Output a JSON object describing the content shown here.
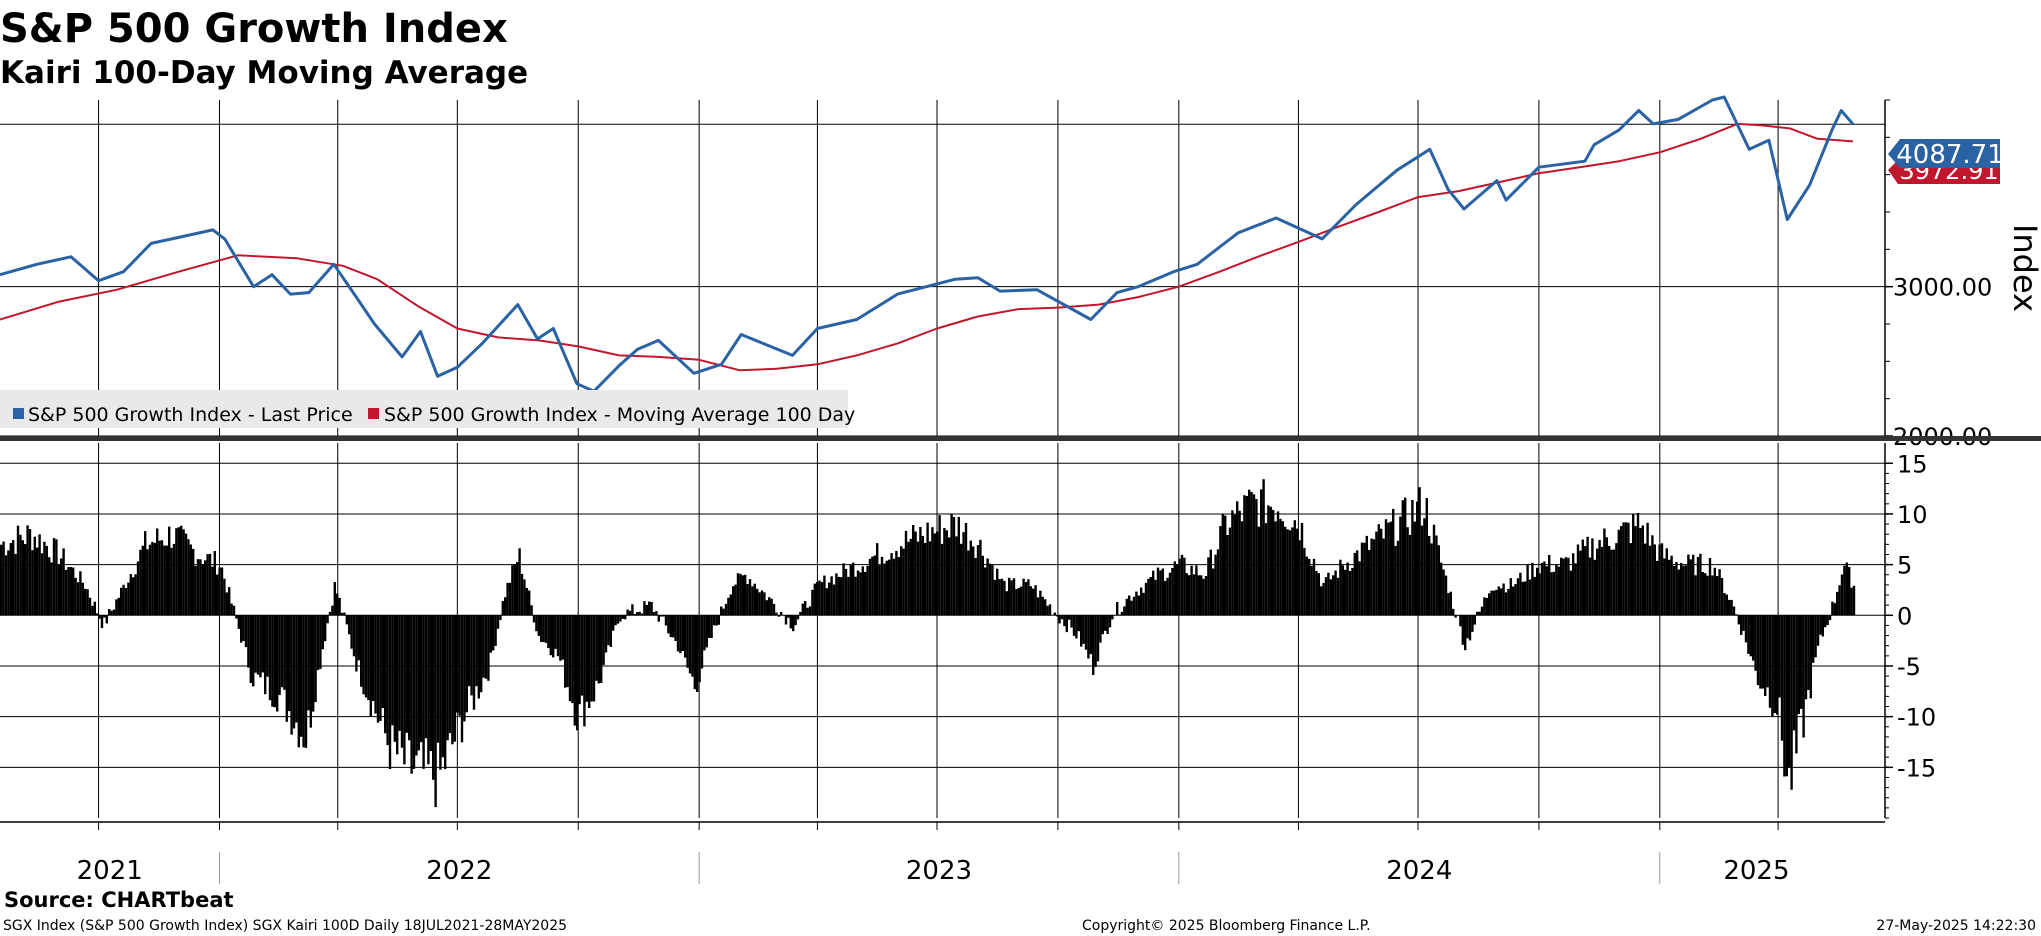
{
  "chart_data": [
    {
      "type": "line",
      "title": "S&P 500 Growth Index",
      "subtitle": "Kairi 100-Day Moving Average",
      "ylabel": "Index",
      "ylim": [
        2000,
        4250
      ],
      "yticks": [
        2000,
        3000
      ],
      "ytick_labels": [
        "2000.00",
        "3000.00"
      ],
      "x_range": [
        "2021-07-18",
        "2025-05-28"
      ],
      "x_tick_labels": [
        "2021",
        "2022",
        "2023",
        "2024",
        "2025"
      ],
      "grid": true,
      "legend_position": "bottom-left",
      "series": [
        {
          "name": "S&P 500 Growth Index - Last Price",
          "color": "#2a62a4",
          "last_value_label": "4087.71",
          "points": [
            [
              "2021-07-18",
              3080
            ],
            [
              "2021-08-15",
              3150
            ],
            [
              "2021-09-10",
              3200
            ],
            [
              "2021-10-01",
              3040
            ],
            [
              "2021-10-20",
              3100
            ],
            [
              "2021-11-10",
              3290
            ],
            [
              "2021-12-01",
              3330
            ],
            [
              "2021-12-27",
              3380
            ],
            [
              "2022-01-05",
              3320
            ],
            [
              "2022-01-27",
              3000
            ],
            [
              "2022-02-10",
              3080
            ],
            [
              "2022-02-24",
              2950
            ],
            [
              "2022-03-10",
              2960
            ],
            [
              "2022-03-29",
              3150
            ],
            [
              "2022-04-12",
              2970
            ],
            [
              "2022-04-29",
              2750
            ],
            [
              "2022-05-20",
              2530
            ],
            [
              "2022-06-03",
              2700
            ],
            [
              "2022-06-16",
              2400
            ],
            [
              "2022-07-01",
              2460
            ],
            [
              "2022-07-20",
              2620
            ],
            [
              "2022-08-16",
              2880
            ],
            [
              "2022-08-31",
              2650
            ],
            [
              "2022-09-12",
              2720
            ],
            [
              "2022-09-30",
              2350
            ],
            [
              "2022-10-13",
              2300
            ],
            [
              "2022-11-01",
              2470
            ],
            [
              "2022-11-15",
              2580
            ],
            [
              "2022-12-01",
              2640
            ],
            [
              "2022-12-28",
              2420
            ],
            [
              "2023-01-18",
              2480
            ],
            [
              "2023-02-02",
              2680
            ],
            [
              "2023-03-13",
              2540
            ],
            [
              "2023-04-01",
              2720
            ],
            [
              "2023-05-01",
              2780
            ],
            [
              "2023-06-01",
              2950
            ],
            [
              "2023-07-15",
              3050
            ],
            [
              "2023-08-01",
              3060
            ],
            [
              "2023-08-18",
              2970
            ],
            [
              "2023-09-15",
              2980
            ],
            [
              "2023-10-26",
              2780
            ],
            [
              "2023-11-15",
              2960
            ],
            [
              "2023-12-01",
              3000
            ],
            [
              "2023-12-28",
              3100
            ],
            [
              "2024-01-15",
              3150
            ],
            [
              "2024-02-15",
              3360
            ],
            [
              "2024-03-15",
              3460
            ],
            [
              "2024-04-19",
              3320
            ],
            [
              "2024-05-15",
              3550
            ],
            [
              "2024-06-15",
              3780
            ],
            [
              "2024-07-10",
              3920
            ],
            [
              "2024-07-24",
              3650
            ],
            [
              "2024-08-05",
              3520
            ],
            [
              "2024-08-30",
              3710
            ],
            [
              "2024-09-06",
              3580
            ],
            [
              "2024-10-01",
              3800
            ],
            [
              "2024-11-05",
              3840
            ],
            [
              "2024-11-12",
              3950
            ],
            [
              "2024-12-01",
              4050
            ],
            [
              "2024-12-16",
              4180
            ],
            [
              "2024-12-27",
              4090
            ],
            [
              "2025-01-15",
              4120
            ],
            [
              "2025-02-10",
              4250
            ],
            [
              "2025-02-19",
              4270
            ],
            [
              "2025-03-10",
              3920
            ],
            [
              "2025-03-25",
              3980
            ],
            [
              "2025-04-08",
              3450
            ],
            [
              "2025-04-25",
              3680
            ],
            [
              "2025-05-12",
              4050
            ],
            [
              "2025-05-19",
              4180
            ],
            [
              "2025-05-28",
              4087.71
            ]
          ]
        },
        {
          "name": "S&P 500 Growth Index - Moving Average 100 Day",
          "color": "#c0172c",
          "last_value_label": "3972.91",
          "points": [
            [
              "2021-07-18",
              2780
            ],
            [
              "2021-09-01",
              2900
            ],
            [
              "2021-10-15",
              2980
            ],
            [
              "2021-12-01",
              3100
            ],
            [
              "2022-01-15",
              3210
            ],
            [
              "2022-03-01",
              3190
            ],
            [
              "2022-04-05",
              3140
            ],
            [
              "2022-05-01",
              3050
            ],
            [
              "2022-06-01",
              2870
            ],
            [
              "2022-07-01",
              2720
            ],
            [
              "2022-08-01",
              2660
            ],
            [
              "2022-09-01",
              2640
            ],
            [
              "2022-10-01",
              2600
            ],
            [
              "2022-11-01",
              2540
            ],
            [
              "2022-12-01",
              2530
            ],
            [
              "2023-01-01",
              2510
            ],
            [
              "2023-02-01",
              2440
            ],
            [
              "2023-03-01",
              2450
            ],
            [
              "2023-04-01",
              2480
            ],
            [
              "2023-05-01",
              2540
            ],
            [
              "2023-06-01",
              2620
            ],
            [
              "2023-07-01",
              2720
            ],
            [
              "2023-08-01",
              2800
            ],
            [
              "2023-09-01",
              2850
            ],
            [
              "2023-10-01",
              2860
            ],
            [
              "2023-11-01",
              2880
            ],
            [
              "2023-12-01",
              2930
            ],
            [
              "2024-01-01",
              3000
            ],
            [
              "2024-02-01",
              3100
            ],
            [
              "2024-03-01",
              3200
            ],
            [
              "2024-04-01",
              3300
            ],
            [
              "2024-05-01",
              3400
            ],
            [
              "2024-06-01",
              3500
            ],
            [
              "2024-07-01",
              3600
            ],
            [
              "2024-08-01",
              3640
            ],
            [
              "2024-09-01",
              3700
            ],
            [
              "2024-10-01",
              3760
            ],
            [
              "2024-11-01",
              3800
            ],
            [
              "2024-12-01",
              3840
            ],
            [
              "2025-01-01",
              3900
            ],
            [
              "2025-02-01",
              3990
            ],
            [
              "2025-03-01",
              4090
            ],
            [
              "2025-03-20",
              4080
            ],
            [
              "2025-04-10",
              4060
            ],
            [
              "2025-05-01",
              3990
            ],
            [
              "2025-05-28",
              3972.91
            ]
          ]
        }
      ]
    },
    {
      "type": "bar",
      "title": "",
      "ylim": [
        -20,
        17
      ],
      "yticks": [
        15,
        10,
        5,
        0,
        -5,
        -10,
        -15
      ],
      "grid": true,
      "series": [
        {
          "name": "",
          "color": "#000000",
          "points": [
            [
              "2021-07-18",
              7
            ],
            [
              "2021-08-10",
              8
            ],
            [
              "2021-08-31",
              6
            ],
            [
              "2021-09-20",
              3
            ],
            [
              "2021-10-04",
              -1
            ],
            [
              "2021-10-20",
              3
            ],
            [
              "2021-11-05",
              7
            ],
            [
              "2021-11-25",
              8
            ],
            [
              "2021-12-15",
              6
            ],
            [
              "2022-01-01",
              5
            ],
            [
              "2022-01-12",
              0
            ],
            [
              "2022-01-25",
              -6
            ],
            [
              "2022-02-15",
              -8
            ],
            [
              "2022-03-07",
              -12
            ],
            [
              "2022-03-20",
              -3
            ],
            [
              "2022-03-29",
              3
            ],
            [
              "2022-04-15",
              -5
            ],
            [
              "2022-05-10",
              -13
            ],
            [
              "2022-05-25",
              -15
            ],
            [
              "2022-06-16",
              -16
            ],
            [
              "2022-07-05",
              -10
            ],
            [
              "2022-07-25",
              -5
            ],
            [
              "2022-08-05",
              2
            ],
            [
              "2022-08-16",
              6
            ],
            [
              "2022-08-31",
              -2
            ],
            [
              "2022-09-15",
              -4
            ],
            [
              "2022-09-30",
              -10
            ],
            [
              "2022-10-15",
              -7
            ],
            [
              "2022-11-01",
              0
            ],
            [
              "2022-11-25",
              1
            ],
            [
              "2022-12-15",
              -3
            ],
            [
              "2022-12-28",
              -7
            ],
            [
              "2023-01-10",
              -2
            ],
            [
              "2023-01-25",
              3
            ],
            [
              "2023-02-05",
              4
            ],
            [
              "2023-02-20",
              2
            ],
            [
              "2023-03-13",
              -1
            ],
            [
              "2023-04-01",
              3
            ],
            [
              "2023-05-01",
              5
            ],
            [
              "2023-06-01",
              7
            ],
            [
              "2023-06-20",
              8
            ],
            [
              "2023-07-15",
              9
            ],
            [
              "2023-08-01",
              7
            ],
            [
              "2023-08-20",
              3
            ],
            [
              "2023-09-10",
              3
            ],
            [
              "2023-09-30",
              0
            ],
            [
              "2023-10-15",
              -2
            ],
            [
              "2023-10-27",
              -5
            ],
            [
              "2023-11-10",
              0
            ],
            [
              "2023-11-25",
              2
            ],
            [
              "2023-12-15",
              4
            ],
            [
              "2024-01-01",
              5
            ],
            [
              "2024-01-20",
              4
            ],
            [
              "2024-02-05",
              9
            ],
            [
              "2024-02-25",
              11
            ],
            [
              "2024-03-15",
              11
            ],
            [
              "2024-04-01",
              9
            ],
            [
              "2024-04-19",
              3
            ],
            [
              "2024-05-05",
              5
            ],
            [
              "2024-05-25",
              7
            ],
            [
              "2024-06-15",
              9
            ],
            [
              "2024-07-05",
              11
            ],
            [
              "2024-07-25",
              2
            ],
            [
              "2024-08-05",
              -3
            ],
            [
              "2024-08-25",
              3
            ],
            [
              "2024-09-10",
              3
            ],
            [
              "2024-09-30",
              5
            ],
            [
              "2024-10-20",
              5
            ],
            [
              "2024-11-12",
              7
            ],
            [
              "2024-12-01",
              8
            ],
            [
              "2024-12-16",
              9
            ],
            [
              "2025-01-01",
              6
            ],
            [
              "2025-01-20",
              5
            ],
            [
              "2025-02-10",
              5
            ],
            [
              "2025-02-25",
              1
            ],
            [
              "2025-03-05",
              -2
            ],
            [
              "2025-03-15",
              -6
            ],
            [
              "2025-03-31",
              -9
            ],
            [
              "2025-04-08",
              -17
            ],
            [
              "2025-04-20",
              -10
            ],
            [
              "2025-05-01",
              -3
            ],
            [
              "2025-05-12",
              1
            ],
            [
              "2025-05-20",
              5
            ],
            [
              "2025-05-28",
              3
            ]
          ]
        }
      ]
    }
  ],
  "legend": {
    "last_price": "S&P 500 Growth Index - Last Price",
    "moving_average": "S&P 500 Growth Index - Moving Average 100 Day"
  },
  "footer": {
    "source": "Source: CHARTbeat",
    "description": "SGX Index (S&P 500 Growth Index) SGX Kairi 100D  Daily 18JUL2021-28MAY2025",
    "copyright": "Copyright© 2025 Bloomberg Finance L.P.",
    "timestamp": "27-May-2025 14:22:30"
  }
}
